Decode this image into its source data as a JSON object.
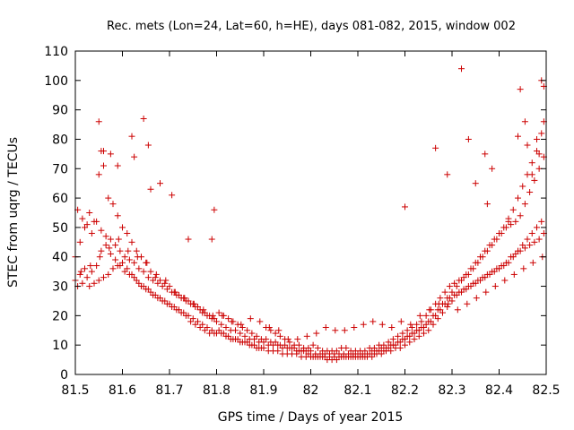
{
  "chart_data": {
    "type": "scatter",
    "title": "Rec. mets (Lon=24, Lat=60, h=HE), days 081-082, 2015, window 002",
    "xlabel": "GPS time / Days of year 2015",
    "ylabel": "STEC from uqrg / TECUs",
    "xlim": [
      81.5,
      82.5
    ],
    "ylim": [
      0,
      110
    ],
    "xticks": [
      "81.5",
      "81.6",
      "81.7",
      "81.8",
      "81.9",
      "82",
      "82.1",
      "82.2",
      "82.3",
      "82.4",
      "82.5"
    ],
    "yticks": [
      "0",
      "10",
      "20",
      "30",
      "40",
      "50",
      "60",
      "70",
      "80",
      "90",
      "100",
      "110"
    ],
    "grid": false,
    "legend": "none",
    "marker": "plus",
    "color": "#cc0000",
    "series": [
      {
        "x": [
          81.5,
          81.51,
          81.52,
          81.53,
          81.54,
          81.55,
          81.56,
          81.57,
          81.58,
          81.59,
          81.6,
          81.61,
          81.62,
          81.63,
          81.64,
          81.65,
          81.66,
          81.67,
          81.68,
          81.69,
          81.7,
          81.71,
          81.72,
          81.73,
          81.74,
          81.75,
          81.76,
          81.77,
          81.78,
          81.79,
          81.8,
          81.81,
          81.82,
          81.83,
          81.84,
          81.85,
          81.86,
          81.87,
          81.88,
          81.89,
          81.9,
          81.91,
          81.92,
          81.93,
          81.94,
          81.95,
          81.96,
          81.97,
          81.98,
          81.99,
          82.0,
          82.01,
          82.02,
          82.03,
          82.04,
          82.05,
          82.06,
          82.07,
          82.08,
          82.09,
          82.1,
          82.11,
          82.12,
          82.13,
          82.14,
          82.15,
          82.16,
          82.17,
          82.18,
          82.19,
          82.2,
          82.21,
          82.22,
          82.23,
          82.24,
          82.25,
          82.26,
          82.27,
          82.28,
          82.29,
          82.3,
          82.31,
          82.32,
          82.33,
          82.34,
          82.35,
          82.36,
          82.37,
          82.38,
          82.39,
          82.4,
          82.41,
          82.42,
          82.43,
          82.44,
          82.45,
          82.46,
          82.47,
          82.48,
          82.49,
          81.5,
          81.51,
          81.52,
          81.53,
          81.54,
          81.55,
          81.56,
          81.57,
          81.58,
          81.59,
          81.6,
          81.61,
          81.62,
          81.63,
          81.64,
          81.65,
          81.66,
          81.67,
          81.68,
          81.69,
          81.7,
          81.71,
          81.72,
          81.73,
          81.74,
          81.75,
          81.76,
          81.77,
          81.78,
          81.79,
          81.8,
          81.81,
          81.82,
          81.83,
          81.84,
          81.85,
          81.86,
          81.87,
          81.88,
          81.89,
          81.9,
          81.91,
          81.92,
          81.93,
          81.94,
          81.95,
          81.96,
          81.97,
          81.98,
          81.99,
          82.0,
          82.01,
          82.02,
          82.03,
          82.04,
          82.05,
          82.06,
          82.07,
          82.08,
          82.09,
          82.1,
          82.11,
          82.12,
          82.13,
          82.14,
          82.15,
          82.16,
          82.17,
          82.18,
          82.19,
          82.2,
          82.21,
          82.22,
          82.23,
          82.24,
          82.25,
          82.26,
          82.27,
          82.28,
          82.29,
          82.3,
          82.31,
          82.32,
          82.33,
          82.34,
          82.35,
          82.36,
          82.37,
          82.38,
          82.39,
          82.4,
          82.41,
          82.42,
          82.43,
          82.44,
          82.45,
          82.46,
          82.47,
          82.48,
          82.49,
          81.505,
          81.515,
          81.525,
          81.535,
          81.545,
          81.555,
          81.565,
          81.575,
          81.585,
          81.595,
          81.605,
          81.615,
          81.625,
          81.635,
          81.645,
          81.655,
          81.665,
          81.675,
          81.685,
          81.695,
          81.705,
          81.715,
          81.725,
          81.735,
          81.745,
          81.755,
          81.765,
          81.775,
          81.785,
          81.795,
          81.805,
          81.815,
          81.825,
          81.835,
          81.845,
          81.855,
          81.865,
          81.875,
          81.885,
          81.895,
          81.905,
          81.915,
          81.925,
          81.935,
          81.945,
          81.955,
          81.965,
          81.975,
          81.985,
          81.995,
          82.005,
          82.015,
          82.025,
          82.035,
          82.045,
          82.055,
          82.065,
          82.075,
          82.085,
          82.095,
          82.105,
          82.115,
          82.125,
          82.135,
          82.145,
          82.155,
          82.165,
          82.175,
          82.185,
          82.195,
          82.205,
          82.215,
          82.225,
          82.235,
          82.245,
          82.255,
          82.265,
          82.275,
          82.285,
          82.295,
          82.305,
          82.315,
          82.325,
          82.335,
          82.345,
          82.355,
          82.365,
          82.375,
          82.385,
          82.395,
          82.405,
          82.415,
          82.425,
          82.435,
          82.445,
          82.455,
          82.465,
          82.475,
          82.485,
          82.495,
          81.505,
          81.515,
          81.525,
          81.535,
          81.545,
          81.555,
          81.565,
          81.575,
          81.585,
          81.595,
          81.605,
          81.615,
          81.625,
          81.635,
          81.645,
          81.655,
          81.665,
          81.675,
          81.685,
          81.695,
          81.705,
          81.715,
          81.725,
          81.735,
          81.745,
          81.755,
          81.765,
          81.775,
          81.785,
          81.795,
          81.805,
          81.815,
          81.825,
          81.835,
          81.845,
          81.855,
          81.865,
          81.875,
          81.885,
          81.895,
          81.905,
          81.915,
          81.925,
          81.935,
          81.945,
          81.955,
          81.965,
          81.975,
          81.985,
          81.995,
          82.005,
          82.015,
          82.025,
          82.035,
          82.045,
          82.055,
          82.065,
          82.075,
          82.085,
          82.095,
          82.105,
          82.115,
          82.125,
          82.135,
          82.145,
          82.155,
          82.165,
          82.175,
          82.185,
          82.195,
          82.205,
          82.215,
          82.225,
          82.235,
          82.245,
          82.255,
          82.265,
          82.275,
          82.285,
          82.295,
          82.305,
          82.315,
          82.325,
          82.335,
          82.345,
          82.355,
          82.365,
          82.375,
          82.385,
          82.395,
          82.405,
          82.415,
          82.425,
          82.435,
          82.445,
          82.455,
          82.465,
          82.475,
          82.485,
          82.495,
          81.512,
          81.532,
          81.552,
          81.572,
          81.592,
          81.612,
          81.632,
          81.652,
          81.672,
          81.692,
          81.712,
          81.732,
          81.752,
          81.772,
          81.792,
          81.812,
          81.832,
          81.852,
          81.872,
          81.892,
          81.912,
          81.932,
          81.952,
          81.972,
          81.992,
          82.012,
          82.032,
          82.052,
          82.072,
          82.092,
          82.112,
          82.132,
          82.152,
          82.172,
          82.192,
          82.212,
          82.232,
          82.252,
          82.272,
          82.292,
          82.312,
          82.332,
          82.352,
          82.372,
          82.392,
          82.412,
          82.432,
          82.452,
          82.472,
          82.492,
          81.55,
          81.555,
          81.56,
          81.575,
          81.59,
          81.62,
          81.625,
          81.645,
          81.655,
          81.66,
          81.68,
          81.705,
          81.74,
          81.79,
          81.795,
          82.2,
          82.265,
          82.29,
          82.32,
          82.335,
          82.35,
          82.37,
          82.375,
          82.385,
          82.42,
          82.44,
          82.445,
          82.455,
          82.47,
          82.48,
          82.49,
          82.495,
          82.495,
          82.485,
          82.46
        ],
        "y": [
          40,
          45,
          50,
          55,
          52,
          68,
          76,
          60,
          58,
          54,
          50,
          48,
          45,
          42,
          40,
          38,
          35,
          33,
          32,
          31,
          30,
          28,
          27,
          26,
          25,
          24,
          23,
          21,
          20,
          19,
          18,
          17,
          16,
          15,
          15,
          14,
          13,
          12,
          12,
          11,
          11,
          10,
          10,
          10,
          9,
          9,
          9,
          8,
          8,
          8,
          8,
          7,
          7,
          7,
          7,
          7,
          7,
          7,
          7,
          7,
          7,
          7,
          7,
          8,
          8,
          9,
          9,
          10,
          10,
          11,
          12,
          13,
          14,
          15,
          16,
          18,
          20,
          22,
          24,
          26,
          28,
          30,
          32,
          34,
          36,
          38,
          40,
          42,
          44,
          46,
          48,
          50,
          52,
          56,
          60,
          64,
          68,
          72,
          76,
          82,
          32,
          34,
          36,
          30,
          31,
          32,
          33,
          34,
          36,
          37,
          38,
          36,
          34,
          32,
          30,
          29,
          28,
          27,
          26,
          25,
          24,
          23,
          22,
          21,
          20,
          19,
          18,
          17,
          16,
          15,
          14,
          14,
          13,
          12,
          12,
          11,
          11,
          10,
          10,
          9,
          9,
          8,
          8,
          8,
          7,
          7,
          7,
          7,
          6,
          6,
          6,
          6,
          6,
          6,
          6,
          6,
          6,
          6,
          6,
          6,
          6,
          6,
          6,
          6,
          7,
          7,
          8,
          8,
          9,
          9,
          10,
          11,
          12,
          13,
          14,
          15,
          17,
          19,
          21,
          23,
          25,
          27,
          28,
          29,
          30,
          31,
          32,
          33,
          34,
          35,
          36,
          37,
          38,
          40,
          42,
          44,
          46,
          48,
          50,
          52,
          56,
          53,
          51,
          48,
          52,
          49,
          47,
          46,
          44,
          42,
          40,
          39,
          38,
          36,
          35,
          33,
          32,
          31,
          30,
          29,
          28,
          27,
          26,
          25,
          24,
          23,
          22,
          21,
          20,
          19,
          21,
          20,
          19,
          18,
          17,
          16,
          15,
          14,
          13,
          12,
          16,
          15,
          14,
          13,
          12,
          11,
          10,
          10,
          9,
          9,
          10,
          9,
          8,
          8,
          8,
          8,
          9,
          9,
          8,
          8,
          8,
          8,
          9,
          9,
          10,
          10,
          11,
          12,
          13,
          14,
          15,
          16,
          17,
          18,
          20,
          22,
          24,
          26,
          28,
          30,
          31,
          32,
          33,
          34,
          36,
          38,
          40,
          42,
          44,
          46,
          48,
          50,
          51,
          52,
          54,
          58,
          62,
          66,
          70,
          74,
          30,
          31,
          33,
          35,
          37,
          42,
          44,
          41,
          39,
          37,
          35,
          34,
          33,
          31,
          30,
          29,
          27,
          26,
          25,
          24,
          23,
          22,
          21,
          20,
          18,
          17,
          16,
          15,
          14,
          14,
          15,
          14,
          13,
          12,
          12,
          11,
          11,
          10,
          9,
          9,
          12,
          11,
          11,
          10,
          10,
          9,
          9,
          8,
          8,
          7,
          6,
          6,
          6,
          5,
          5,
          5,
          6,
          6,
          6,
          6,
          6,
          6,
          7,
          7,
          8,
          8,
          9,
          10,
          11,
          12,
          13,
          14,
          15,
          16,
          17,
          18,
          20,
          22,
          24,
          26,
          27,
          28,
          29,
          30,
          31,
          32,
          33,
          34,
          35,
          36,
          37,
          38,
          40,
          41,
          42,
          43,
          44,
          45,
          46,
          48,
          35,
          37,
          40,
          43,
          46,
          42,
          40,
          38,
          34,
          32,
          28,
          26,
          24,
          22,
          20,
          20,
          18,
          17,
          19,
          18,
          16,
          15,
          12,
          12,
          13,
          14,
          16,
          15,
          15,
          16,
          17,
          18,
          17,
          16,
          18,
          17,
          20,
          22,
          24,
          24,
          22,
          24,
          26,
          28,
          30,
          32,
          34,
          36,
          38,
          40,
          86,
          76,
          71,
          75,
          71,
          81,
          74,
          87,
          78,
          63,
          65,
          61,
          46,
          46,
          56,
          57,
          77,
          68,
          104,
          80,
          65,
          75,
          58,
          70,
          53,
          81,
          97,
          86,
          68,
          80,
          100,
          98,
          86,
          75,
          78
        ]
      }
    ]
  }
}
